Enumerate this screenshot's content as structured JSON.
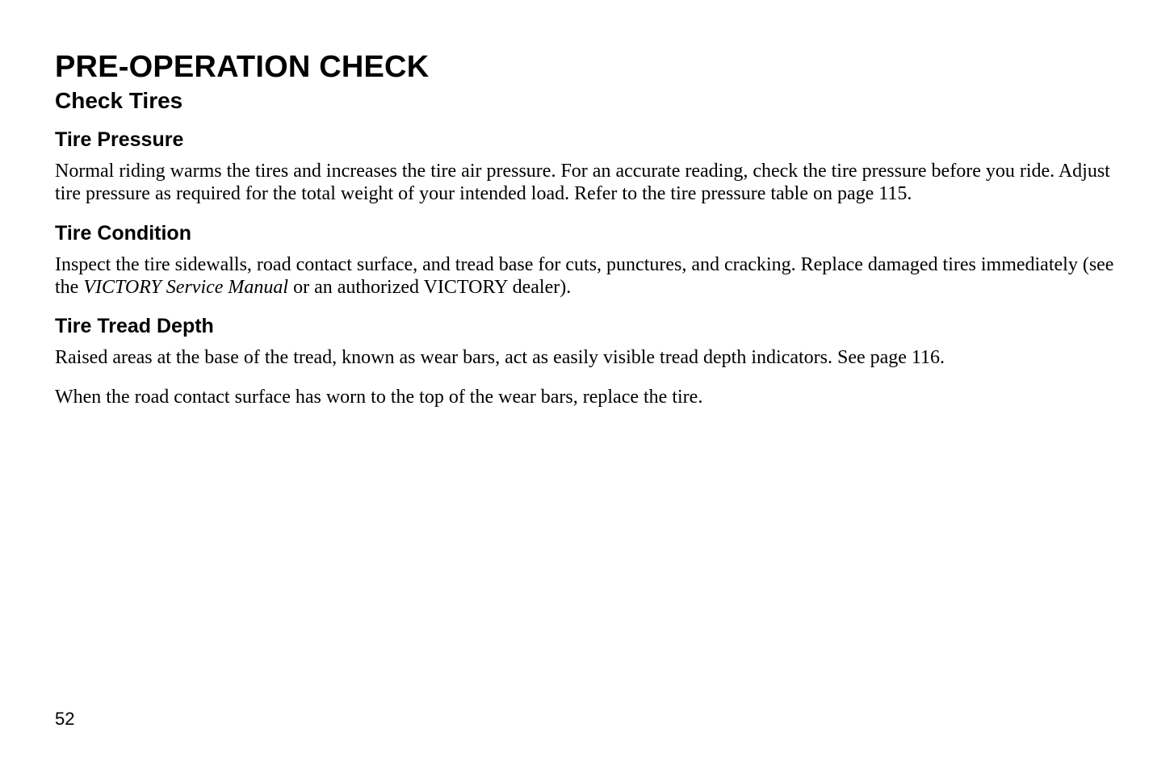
{
  "page": {
    "title": "PRE-OPERATION CHECK",
    "subtitle": "Check Tires",
    "page_number": "52",
    "sections": [
      {
        "heading": "Tire Pressure",
        "paragraphs": [
          {
            "text": "Normal riding warms the tires and increases the tire air pressure. For an accurate reading, check the tire pressure before you ride. Adjust tire pressure as required for the total weight of your intended load.  Refer to the tire pressure table on page 115."
          }
        ]
      },
      {
        "heading": "Tire Condition",
        "paragraphs": [
          {
            "text_pre": "Inspect the tire sidewalls, road contact surface, and tread base for cuts, punctures, and cracking. Replace damaged tires immediately (see the ",
            "text_italic": "VICTORY Service Manual",
            "text_post": " or an authorized VICTORY dealer)."
          }
        ]
      },
      {
        "heading": "Tire Tread Depth",
        "paragraphs": [
          {
            "text": "Raised areas at the base of the tread, known as wear bars, act as easily visible tread depth indicators. See page 116."
          },
          {
            "text": "When the road contact surface has worn to the top of the wear bars, replace the tire."
          }
        ]
      }
    ]
  },
  "style": {
    "colors": {
      "background": "#ffffff",
      "text": "#000000"
    },
    "fonts": {
      "sans": "Arial, Helvetica, sans-serif",
      "serif": "Times New Roman, Times, serif"
    },
    "sizes": {
      "title_pt": 38,
      "subtitle_pt": 28,
      "section_heading_pt": 25,
      "body_pt": 24,
      "page_number_pt": 22
    }
  }
}
